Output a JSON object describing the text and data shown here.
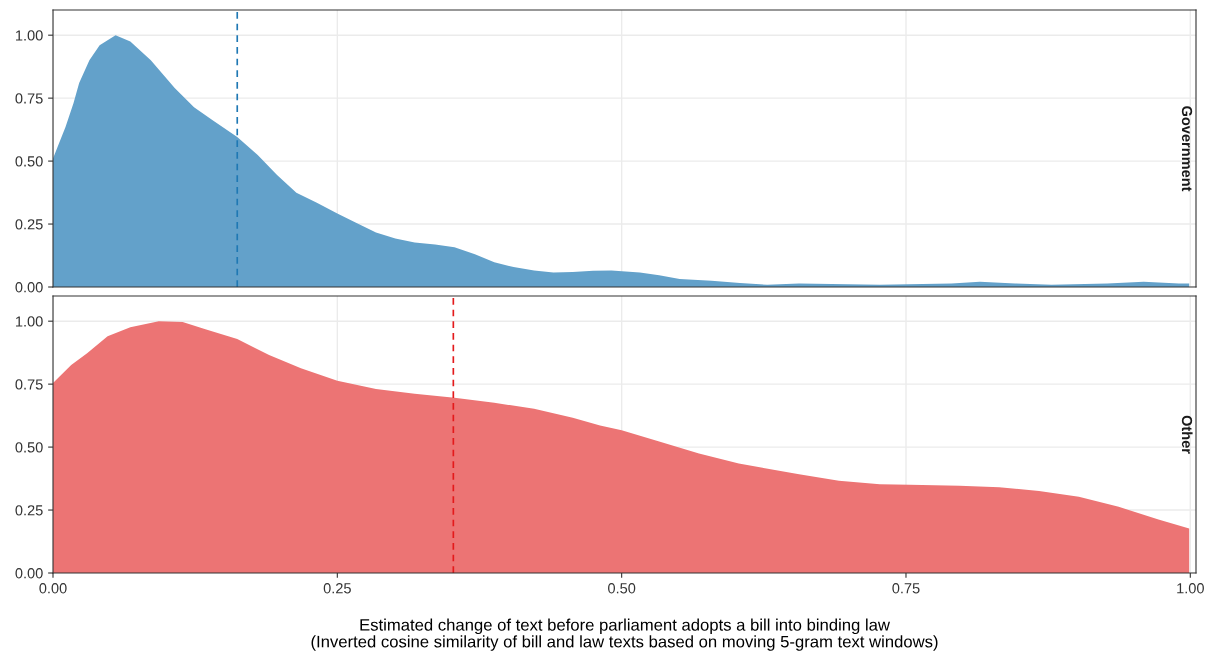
{
  "chart_data": [
    {
      "type": "area",
      "title": "Government",
      "xlim": [
        0,
        1.005
      ],
      "ylim": [
        0,
        1.1
      ],
      "yticks": [
        {
          "value": 0,
          "label": "0.00"
        },
        {
          "value": 0.25,
          "label": "0.25"
        },
        {
          "value": 0.5,
          "label": "0.50"
        },
        {
          "value": 0.75,
          "label": "0.75"
        },
        {
          "value": 1,
          "label": "1.00"
        }
      ],
      "tick_labels": "y",
      "grid": true,
      "x": [
        0,
        0.004,
        0.011,
        0.018,
        0.023,
        0.032,
        0.041,
        0.055,
        0.068,
        0.086,
        0.107,
        0.124,
        0.141,
        0.162,
        0.18,
        0.197,
        0.214,
        0.232,
        0.25,
        0.266,
        0.284,
        0.301,
        0.318,
        0.336,
        0.353,
        0.371,
        0.388,
        0.405,
        0.423,
        0.44,
        0.457,
        0.475,
        0.491,
        0.516,
        0.533,
        0.551,
        0.579,
        0.604,
        0.628,
        0.656,
        0.727,
        0.79,
        0.815,
        0.846,
        0.878,
        0.927,
        0.959,
        0.99,
        0.999
      ],
      "series": [
        {
          "color": "#63a1ca",
          "values": [
            0.51,
            0.556,
            0.635,
            0.73,
            0.81,
            0.9,
            0.96,
            1.0,
            0.975,
            0.9,
            0.79,
            0.714,
            0.66,
            0.596,
            0.524,
            0.445,
            0.374,
            0.335,
            0.292,
            0.256,
            0.216,
            0.193,
            0.177,
            0.169,
            0.158,
            0.13,
            0.098,
            0.079,
            0.066,
            0.058,
            0.06,
            0.065,
            0.066,
            0.058,
            0.047,
            0.032,
            0.025,
            0.016,
            0.009,
            0.014,
            0.009,
            0.014,
            0.021,
            0.014,
            0.009,
            0.014,
            0.021,
            0.014,
            0.014
          ]
        }
      ],
      "ref_lines": [
        {
          "axis": "x",
          "value": 0.162,
          "color": "#1f78b4",
          "line_style": "dashed"
        }
      ]
    },
    {
      "type": "area",
      "title": "Other",
      "xlabel": "Estimated change of text before parliament adopts a bill into binding law\n(Inverted cosine similarity of bill and law texts based on moving 5-gram text windows)",
      "xlim": [
        0,
        1.005
      ],
      "ylim": [
        0,
        1.1
      ],
      "xticks": [
        {
          "value": 0,
          "label": "0.00"
        },
        {
          "value": 0.25,
          "label": "0.25"
        },
        {
          "value": 0.5,
          "label": "0.50"
        },
        {
          "value": 0.75,
          "label": "0.75"
        },
        {
          "value": 1,
          "label": "1.00"
        }
      ],
      "yticks": [
        {
          "value": 0,
          "label": "0.00"
        },
        {
          "value": 0.25,
          "label": "0.25"
        },
        {
          "value": 0.5,
          "label": "0.50"
        },
        {
          "value": 0.75,
          "label": "0.75"
        },
        {
          "value": 1,
          "label": "1.00"
        }
      ],
      "grid": true,
      "x": [
        0,
        0.016,
        0.03,
        0.048,
        0.068,
        0.093,
        0.114,
        0.134,
        0.162,
        0.19,
        0.218,
        0.25,
        0.284,
        0.318,
        0.353,
        0.388,
        0.423,
        0.457,
        0.481,
        0.5,
        0.533,
        0.568,
        0.603,
        0.626,
        0.656,
        0.691,
        0.727,
        0.753,
        0.797,
        0.832,
        0.867,
        0.902,
        0.937,
        0.972,
        0.999
      ],
      "series": [
        {
          "color": "#ec7474",
          "values": [
            0.755,
            0.826,
            0.873,
            0.94,
            0.976,
            1.0,
            0.997,
            0.968,
            0.929,
            0.866,
            0.813,
            0.763,
            0.731,
            0.712,
            0.696,
            0.676,
            0.652,
            0.617,
            0.586,
            0.567,
            0.522,
            0.475,
            0.435,
            0.416,
            0.392,
            0.366,
            0.352,
            0.35,
            0.346,
            0.341,
            0.326,
            0.303,
            0.263,
            0.212,
            0.177
          ]
        }
      ],
      "ref_lines": [
        {
          "axis": "x",
          "value": 0.352,
          "color": "#e31a1c",
          "line_style": "dashed"
        }
      ]
    }
  ]
}
